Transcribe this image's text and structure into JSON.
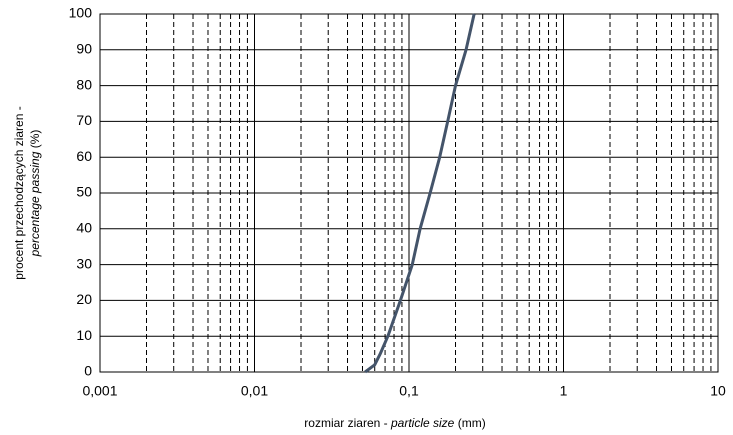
{
  "chart_data": {
    "type": "line",
    "xscale": "log",
    "xlabel": {
      "text": "rozmiar ziaren -",
      "italic": "particle size",
      "unit": "(mm)"
    },
    "ylabel": {
      "line1": "procent przechodzących ziaren -",
      "italic": "percentage passing",
      "unit": "(%)"
    },
    "series": [
      {
        "color": "#44546a",
        "x": [
          0.052,
          0.06,
          0.065,
          0.073,
          0.088,
          0.105,
          0.118,
          0.137,
          0.158,
          0.178,
          0.2,
          0.234,
          0.264
        ],
        "values": [
          0,
          2,
          5,
          10,
          20,
          30,
          40,
          50,
          60,
          70,
          80,
          90,
          100
        ]
      }
    ],
    "xlim": [
      0.001,
      10
    ],
    "xticks": [
      {
        "value": 0.001,
        "label": "0,001"
      },
      {
        "value": 0.01,
        "label": "0,01"
      },
      {
        "value": 0.1,
        "label": "0,1"
      },
      1,
      10
    ],
    "minor_xticks": [
      0.002,
      0.003,
      0.004,
      0.005,
      0.006,
      0.007,
      0.008,
      0.009,
      0.02,
      0.03,
      0.04,
      0.05,
      0.06,
      0.07,
      0.08,
      0.09,
      0.2,
      0.3,
      0.4,
      0.5,
      0.6,
      0.7,
      0.8,
      0.9,
      2,
      3,
      4,
      5,
      6,
      7,
      8,
      9
    ],
    "ylim": [
      0,
      100
    ],
    "yticks": [
      0,
      10,
      20,
      30,
      40,
      50,
      60,
      70,
      80,
      90,
      100
    ],
    "grid": true
  }
}
